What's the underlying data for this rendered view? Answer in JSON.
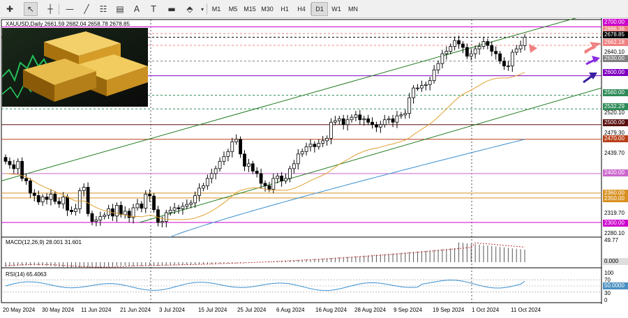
{
  "toolbar": {
    "tools": [
      "plus-icon",
      "cursor-icon",
      "crosshair-icon",
      "hline-icon",
      "trendline-icon",
      "fib-icon",
      "channel-icon",
      "text-icon",
      "label-icon",
      "shapes-icon"
    ],
    "timeframes": [
      "M1",
      "M5",
      "M15",
      "M30",
      "H1",
      "H4",
      "D1",
      "W1",
      "MN"
    ],
    "active_timeframe": "D1",
    "text_tool_label": "A"
  },
  "chart": {
    "header": "XAUUSD,Daily  2661.59 2682.04 2658.78 2678.85",
    "macd_header": "MACD(12,26,9) 28.001 31.601",
    "rsi_header": "RSI(14) 65.4063"
  },
  "price_axis": {
    "ticks": [
      "2700.00",
      "2686.36",
      "2678.85",
      "2662.18",
      "2640.10",
      "2630.00",
      "2600.00",
      "2560.00",
      "2532.29",
      "2520.10",
      "2500.00",
      "2479.30",
      "2470.00",
      "2439.70",
      "2400.00",
      "2360.00",
      "2350.00",
      "2319.70",
      "2300.00",
      "2280.10"
    ],
    "levels": [
      {
        "price": "2700.00",
        "kind": "magenta",
        "color": "#cc00cc"
      },
      {
        "price": "2686.36",
        "kind": "pink",
        "color": "#f08080"
      },
      {
        "price": "2678.85",
        "kind": "current",
        "color": "#000000"
      },
      {
        "price": "2662.18",
        "kind": "pink",
        "color": "#f08080"
      },
      {
        "price": "2630.00",
        "kind": "gray",
        "color": "#808080"
      },
      {
        "price": "2600.00",
        "kind": "purple",
        "color": "#8000c0"
      },
      {
        "price": "2560.00",
        "kind": "green",
        "color": "#2e8b57"
      },
      {
        "price": "2532.29",
        "kind": "green",
        "color": "#2e8b57"
      },
      {
        "price": "2500.00",
        "kind": "brown",
        "color": "#5a1010"
      },
      {
        "price": "2470.00",
        "kind": "darkorange",
        "color": "#b8401a"
      },
      {
        "price": "2400.00",
        "kind": "magenta",
        "color": "#cc66cc"
      },
      {
        "price": "2360.00",
        "kind": "orange",
        "color": "#d89020"
      },
      {
        "price": "2350.00",
        "kind": "orange",
        "color": "#d89020"
      },
      {
        "price": "2300.00",
        "kind": "magenta",
        "color": "#cc00cc"
      }
    ]
  },
  "macd_axis": {
    "ticks": [
      "49.77",
      "0.000"
    ]
  },
  "rsi_axis": {
    "ticks": [
      "100",
      "70",
      "50.0000",
      "30",
      "0"
    ]
  },
  "time_axis": {
    "labels": [
      "20 May 2024",
      "30 May 2024",
      "11 Jun 2024",
      "21 Jun 2024",
      "3 Jul 2024",
      "15 Jul 2024",
      "25 Jul 2024",
      "6 Aug 2024",
      "16 Aug 2024",
      "28 Aug 2024",
      "9 Sep 2024",
      "19 Sep 2024",
      "1 Oct 2024",
      "11 Oct 2024"
    ]
  },
  "chart_data": {
    "type": "candlestick",
    "symbol": "XAUUSD",
    "timeframe": "Daily",
    "ohlc_last": {
      "open": 2661.59,
      "high": 2682.04,
      "low": 2658.78,
      "close": 2678.85
    },
    "ylim": [
      2270,
      2715
    ],
    "closes": [
      2425,
      2418,
      2410,
      2425,
      2390,
      2385,
      2360,
      2355,
      2342,
      2352,
      2347,
      2358,
      2343,
      2338,
      2352,
      2325,
      2322,
      2328,
      2365,
      2372,
      2318,
      2302,
      2305,
      2312,
      2315,
      2328,
      2313,
      2335,
      2316,
      2323,
      2310,
      2330,
      2338,
      2329,
      2358,
      2354,
      2326,
      2300,
      2302,
      2320,
      2325,
      2330,
      2328,
      2333,
      2337,
      2340,
      2355,
      2370,
      2375,
      2390,
      2400,
      2410,
      2425,
      2435,
      2445,
      2465,
      2470,
      2440,
      2415,
      2420,
      2405,
      2400,
      2380,
      2375,
      2368,
      2390,
      2395,
      2385,
      2390,
      2410,
      2420,
      2440,
      2445,
      2455,
      2460,
      2455,
      2462,
      2467,
      2472,
      2505,
      2508,
      2512,
      2500,
      2510,
      2515,
      2520,
      2510,
      2512,
      2505,
      2500,
      2495,
      2500,
      2510,
      2512,
      2505,
      2518,
      2520,
      2523,
      2555,
      2575,
      2575,
      2580,
      2582,
      2590,
      2612,
      2625,
      2645,
      2650,
      2660,
      2672,
      2665,
      2658,
      2640,
      2645,
      2655,
      2660,
      2670,
      2662,
      2650,
      2645,
      2630,
      2620,
      2620,
      2648,
      2655,
      2662,
      2678.85
    ],
    "ema_short_approx_ends": [
      2355,
      2560
    ],
    "ema_long_approx_ends": [
      2270,
      2470
    ],
    "channel": {
      "upper_start": 2385,
      "upper_end": 2720,
      "lower_start": 2300,
      "lower_end": 2575
    },
    "macd": {
      "value": 28.001,
      "signal": 31.601,
      "max_tick": 49.77
    },
    "rsi": {
      "value": 65.4063,
      "levels": [
        70,
        50,
        30
      ]
    }
  },
  "annotations": {
    "arrows": [
      {
        "color": "#f08080",
        "direction": "left",
        "label": "triangle-pointer-icon"
      },
      {
        "color": "#f08080",
        "direction": "up-right",
        "label": "arrow-icon"
      },
      {
        "color": "#8a2be2",
        "direction": "up-right",
        "label": "arrow-icon"
      },
      {
        "color": "#3a1fa0",
        "direction": "up-right",
        "label": "arrow-icon"
      }
    ]
  }
}
